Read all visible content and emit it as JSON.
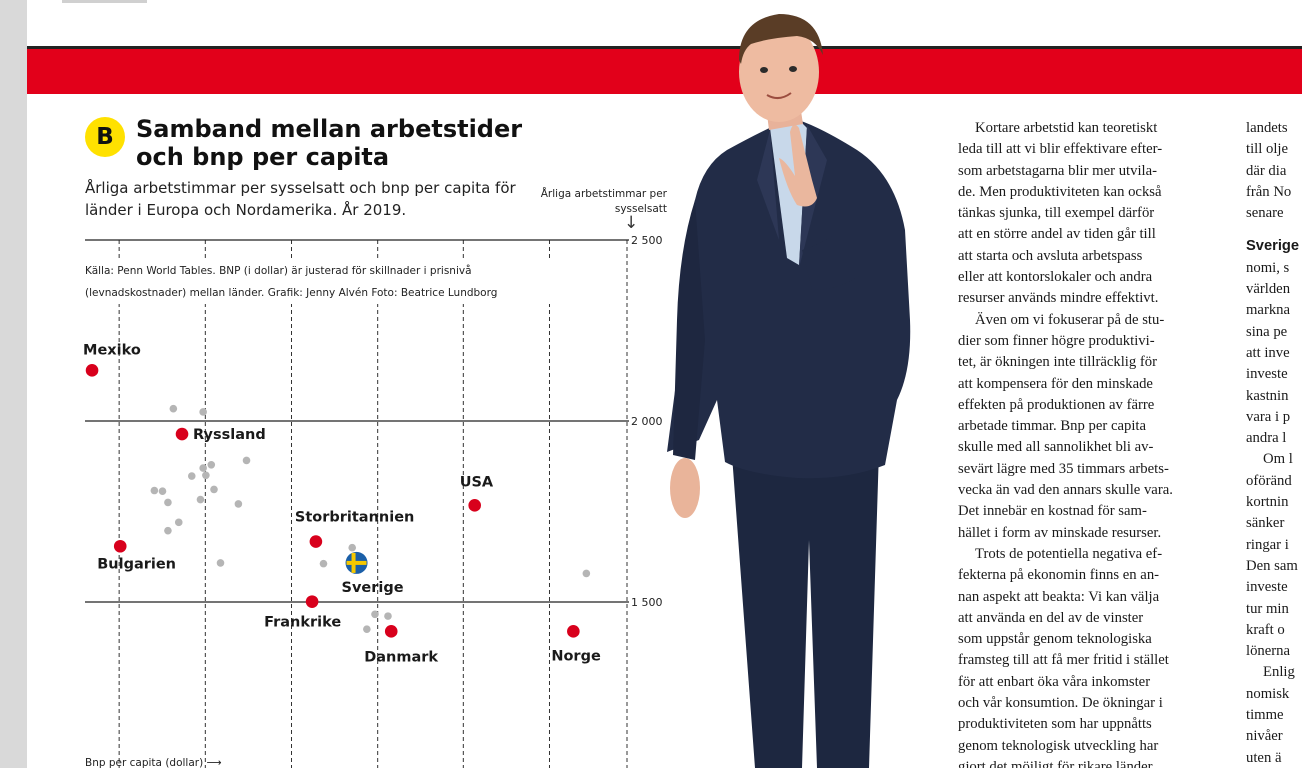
{
  "figure": {
    "badge": "B",
    "title": "Samband mellan arbetstider och bnp per capita",
    "subtitle": "Årliga arbetstimmar per sysselsatt och bnp per capita för länder i Europa och Nordamerika. År 2019.",
    "source": "Källa: Penn World Tables. BNP (i dollar) är justerad för skillnader i prisnivå (levnadskostnader) mellan länder. Grafik: Jenny Alvén Foto: Beatrice Lundborg"
  },
  "chart_data": {
    "type": "scatter",
    "title": "Samband mellan arbetstider och bnp per capita",
    "xlabel": "Bnp per capita (dollar)",
    "ylabel": "Årliga arbetstimmar per sysselsatt",
    "yticks": [
      2500,
      2000,
      1500
    ],
    "ylim": [
      1125,
      2500
    ],
    "xlim": [
      0,
      1
    ],
    "grid": true,
    "highlighted": [
      {
        "label": "Mexiko",
        "x": 0.013,
        "y": 2140,
        "color": "#d8001c"
      },
      {
        "label": "Ryssland",
        "x": 0.179,
        "y": 1964,
        "color": "#d8001c"
      },
      {
        "label": "Bulgarien",
        "x": 0.065,
        "y": 1654,
        "color": "#d8001c"
      },
      {
        "label": "Storbritannien",
        "x": 0.426,
        "y": 1667,
        "color": "#d8001c"
      },
      {
        "label": "USA",
        "x": 0.719,
        "y": 1767,
        "color": "#d8001c"
      },
      {
        "label": "Sverige",
        "x": 0.501,
        "y": 1608,
        "color": "sweden-flag"
      },
      {
        "label": "Frankrike",
        "x": 0.419,
        "y": 1501,
        "color": "#d8001c"
      },
      {
        "label": "Danmark",
        "x": 0.565,
        "y": 1419,
        "color": "#d8001c"
      },
      {
        "label": "Norge",
        "x": 0.901,
        "y": 1419,
        "color": "#d8001c"
      }
    ],
    "others": [
      {
        "x": 0.163,
        "y": 2034
      },
      {
        "x": 0.218,
        "y": 2025
      },
      {
        "x": 0.298,
        "y": 1891
      },
      {
        "x": 0.218,
        "y": 1870
      },
      {
        "x": 0.233,
        "y": 1879
      },
      {
        "x": 0.238,
        "y": 1811
      },
      {
        "x": 0.197,
        "y": 1848
      },
      {
        "x": 0.223,
        "y": 1850
      },
      {
        "x": 0.128,
        "y": 1808
      },
      {
        "x": 0.143,
        "y": 1806
      },
      {
        "x": 0.153,
        "y": 1775
      },
      {
        "x": 0.213,
        "y": 1783
      },
      {
        "x": 0.283,
        "y": 1771
      },
      {
        "x": 0.173,
        "y": 1720
      },
      {
        "x": 0.153,
        "y": 1697
      },
      {
        "x": 0.25,
        "y": 1608
      },
      {
        "x": 0.44,
        "y": 1606
      },
      {
        "x": 0.493,
        "y": 1650
      },
      {
        "x": 0.535,
        "y": 1466
      },
      {
        "x": 0.559,
        "y": 1461
      },
      {
        "x": 0.52,
        "y": 1425
      },
      {
        "x": 0.925,
        "y": 1579
      }
    ],
    "colors": {
      "highlight": "#d8001c",
      "other": "#b5b5b5",
      "flag_blue": "#1b5fa8",
      "flag_yellow": "#f6c800"
    }
  },
  "article": {
    "col1": [
      "Kortare arbetstid kan teoretiskt",
      "leda till att vi blir effektivare efter-",
      "som arbetstagarna blir mer utvila-",
      "de. Men produktiviteten kan också",
      "tänkas sjunka, till exempel därför",
      "att en större andel av tiden går till",
      "att starta och avsluta arbetspass",
      "eller att kontorslokaler och andra",
      "resurser används mindre effektivt.",
      "Även om vi fokuserar på de stu-",
      "dier som finner högre produktivi-",
      "tet, är ökningen inte tillräcklig för",
      "att kompensera för den minskade",
      "effekten på produktionen av färre",
      "arbetade timmar. Bnp per capita",
      "skulle med all sannolikhet bli av-",
      "sevärt lägre med 35 timmars arbets-",
      "vecka än vad den annars skulle vara.",
      "Det innebär en kostnad för sam-",
      "hället i form av minskade resurser.",
      "Trots de potentiella negativa ef-",
      "fekterna på ekonomin finns en an-",
      "nan aspekt att beakta: Vi kan välja",
      "att använda en del av de vinster",
      "som uppstår genom teknologiska",
      "framsteg till att få mer fritid i stället",
      "för att enbart öka våra inkomster",
      "och vår konsumtion. De ökningar i",
      "produktiviteten som har uppnåtts",
      "genom teknologisk utveckling har",
      "gjort det möjligt för rikare länder"
    ],
    "col2_top": [
      "landets",
      "till olje",
      "där dia",
      "från No",
      "senare"
    ],
    "col2_bold": "Sverige",
    "col2_rest": [
      "nomi, s",
      "världen",
      "markna",
      "sina pe",
      "att inve",
      "investe",
      "kastnin",
      "vara i p",
      "andra l",
      "Om l",
      "oföränd",
      "kortnin",
      "sänker",
      "ringar i",
      "Den sam",
      "investe",
      "tur min",
      "kraft o",
      "lönerna",
      "Enlig",
      "nomisk",
      "timme",
      "nivåer",
      "uten ä"
    ]
  }
}
